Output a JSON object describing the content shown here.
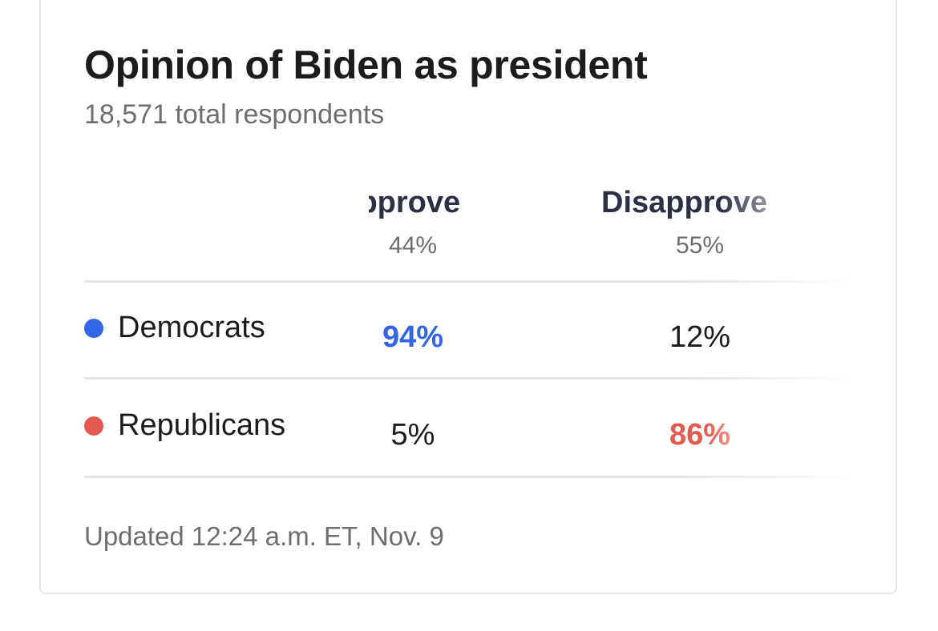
{
  "card": {
    "title": "Opinion of Biden as president",
    "subtitle": "18,571 total respondents",
    "footer": "Updated 12:24 a.m. ET, Nov. 9"
  },
  "chart_data": {
    "type": "table",
    "title": "Opinion of Biden as president",
    "subtitle": "18,571 total respondents",
    "columns": [
      {
        "name": "Approve",
        "total": "44%"
      },
      {
        "name": "Disapprove",
        "total": "55%"
      }
    ],
    "rows": [
      {
        "label": "Democrats",
        "color": "#3366e6",
        "values": [
          "94%",
          "12%"
        ],
        "highlight_column": 0
      },
      {
        "label": "Republicans",
        "color": "#e45a4e",
        "values": [
          "5%",
          "86%"
        ],
        "highlight_column": 1
      }
    ]
  },
  "colors": {
    "democrat": "#3366e6",
    "republican": "#e45a4e",
    "heading": "#2c3045",
    "muted": "#6e6e6e"
  }
}
